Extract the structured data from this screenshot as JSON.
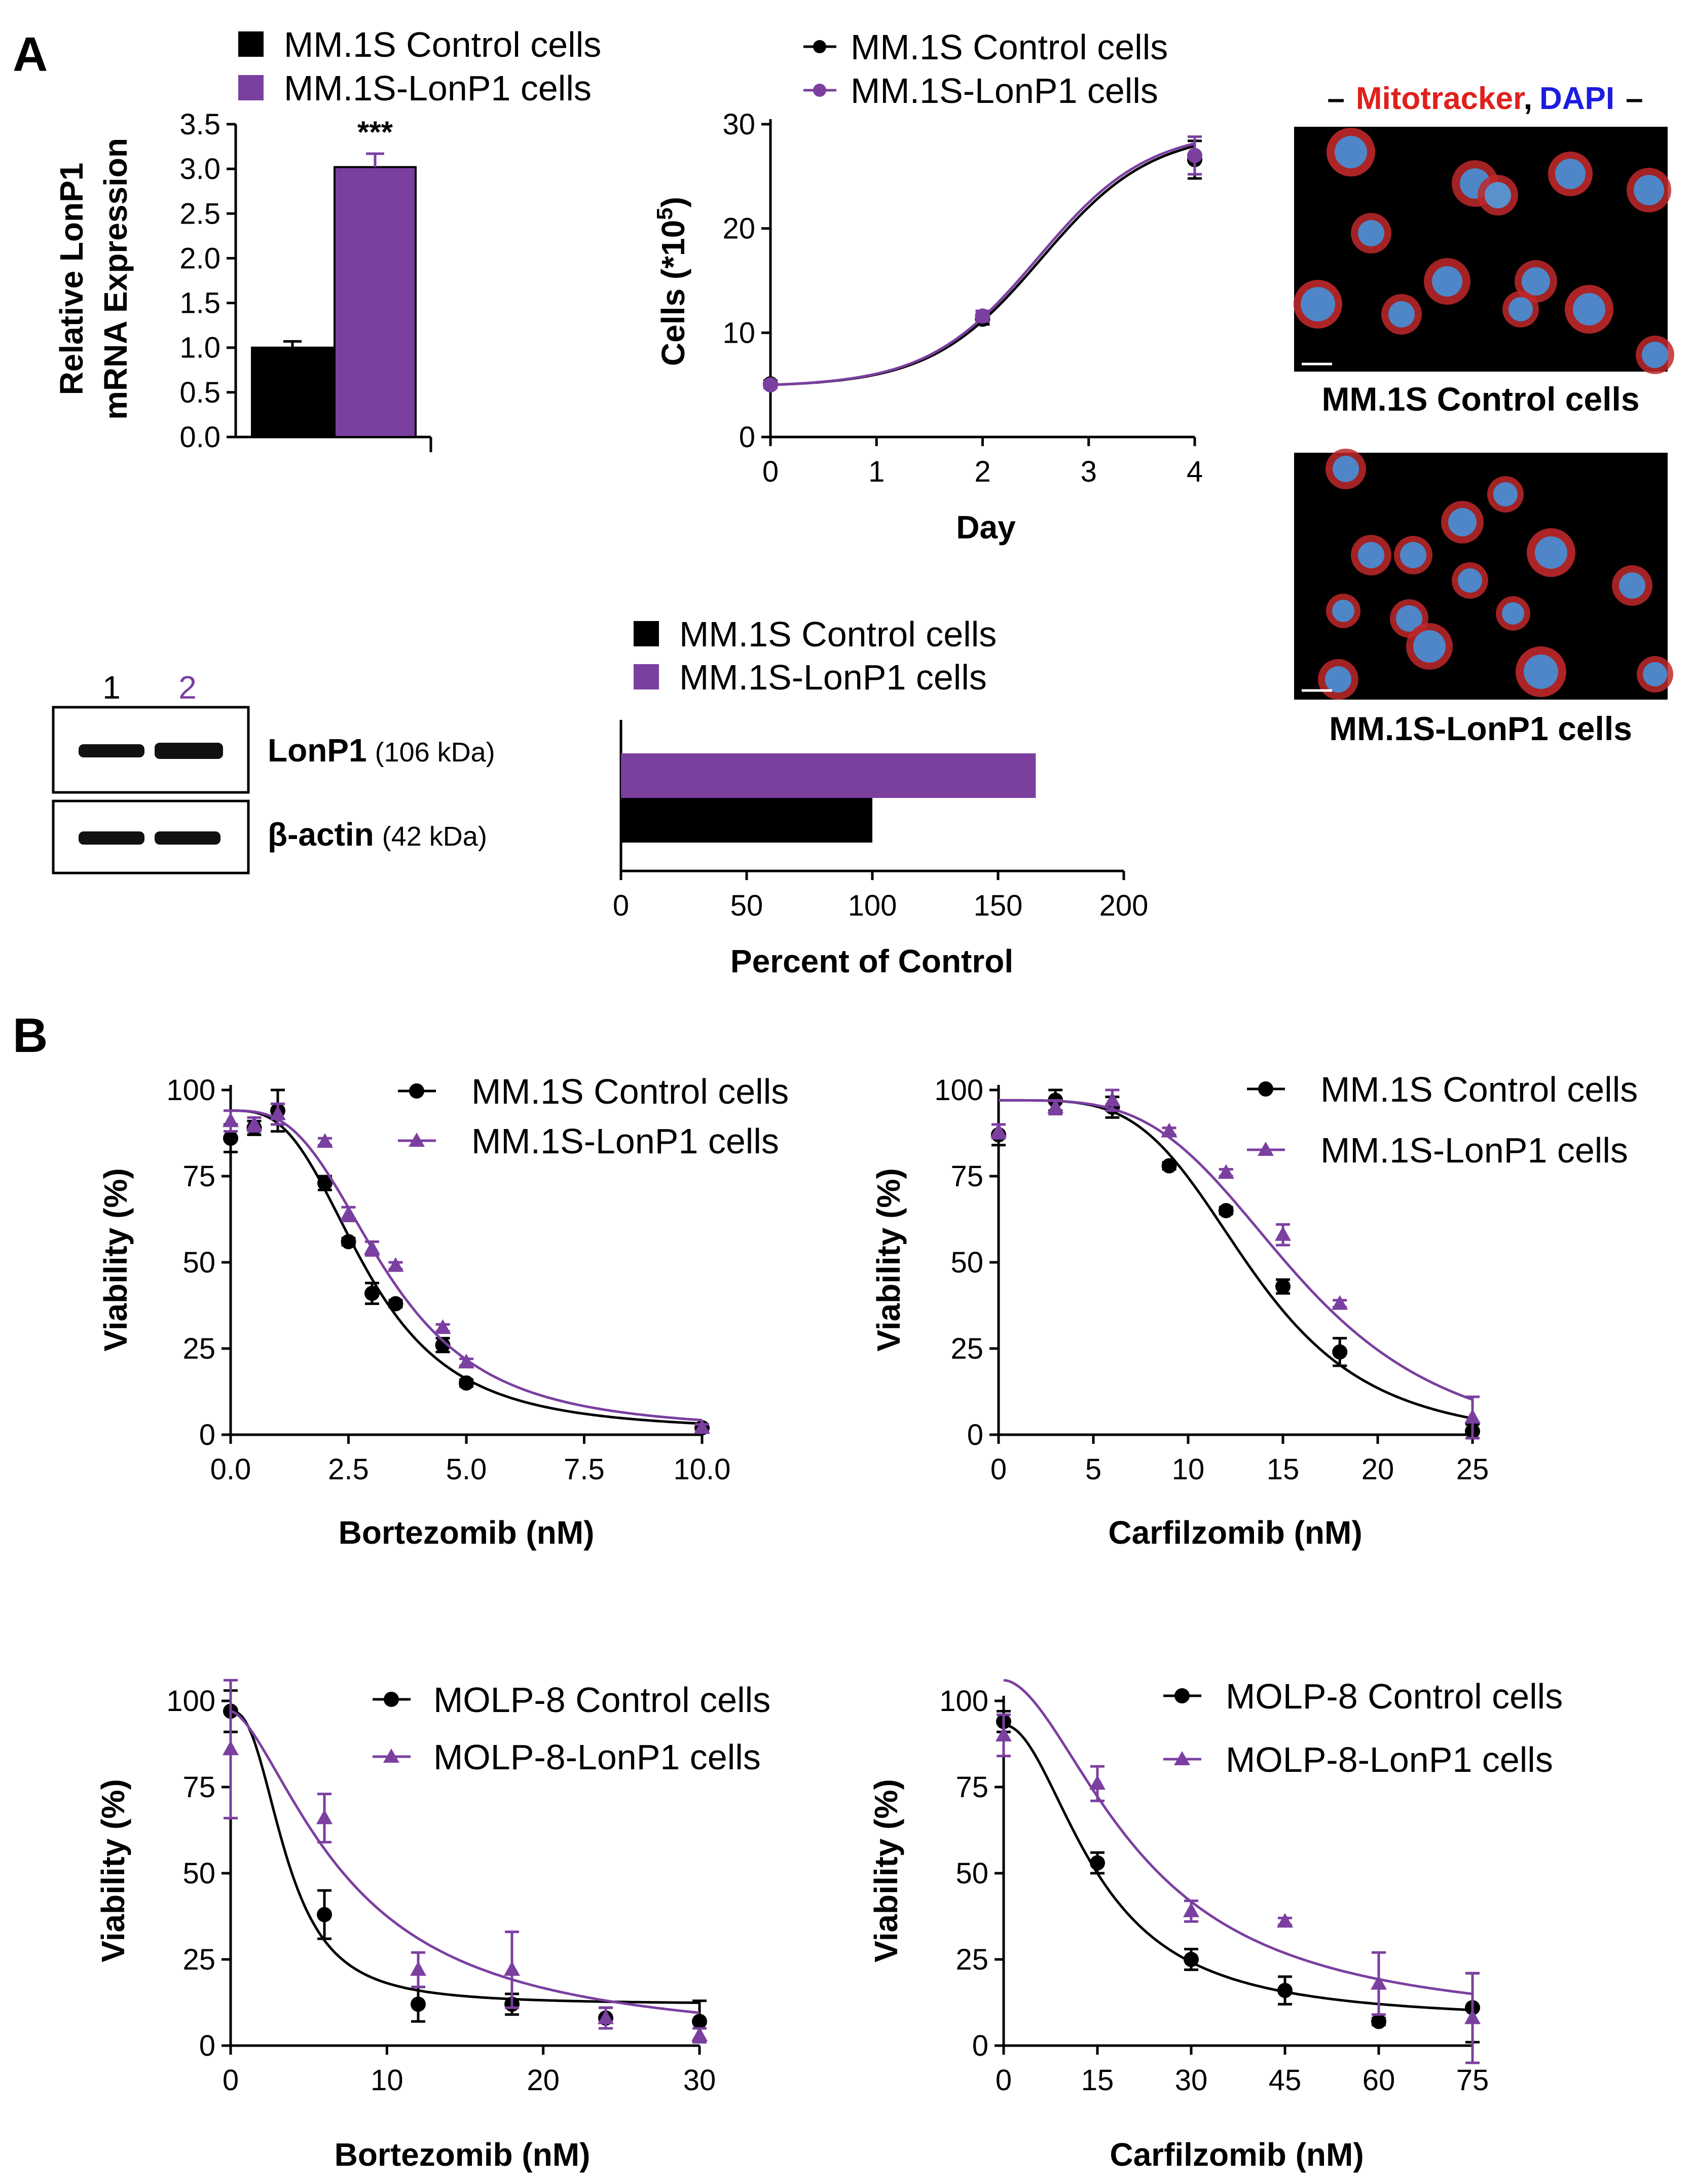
{
  "panels": {
    "A": "A",
    "B": "B"
  },
  "colors": {
    "control": "#000000",
    "lonp1": "#7B3FA0",
    "mito": "#E0201C",
    "dapi": "#1C1CE0"
  },
  "chart_data": [
    {
      "id": "mrna",
      "type": "bar",
      "ylabel_line1": "Relative LonP1",
      "ylabel_line2": "mRNA Expression",
      "ylim": [
        0,
        3.5
      ],
      "yticks": [
        "0.0",
        "0.5",
        "1.0",
        "1.5",
        "2.0",
        "2.5",
        "3.0",
        "3.5"
      ],
      "series": [
        {
          "name": "MM.1S Control cells",
          "value": 1.0,
          "err": 0.07
        },
        {
          "name": "MM.1S-LonP1 cells",
          "value": 3.02,
          "err": 0.15
        }
      ],
      "annotation": "***"
    },
    {
      "id": "growth",
      "type": "line",
      "xlabel": "Day",
      "ylabel": "Cells (*10",
      "ylabel_sup": "5",
      "ylabel_close": ")",
      "xlim": [
        0,
        4
      ],
      "ylim": [
        0,
        30
      ],
      "xticks": [
        "0",
        "1",
        "2",
        "3",
        "4"
      ],
      "yticks": [
        "0",
        "10",
        "20",
        "30"
      ],
      "series": [
        {
          "name": "MM.1S Control cells",
          "x": [
            0,
            2,
            4
          ],
          "y": [
            5.1,
            11.3,
            26.6
          ],
          "err": [
            0.3,
            0.5,
            1.8
          ]
        },
        {
          "name": "MM.1S-LonP1 cells",
          "x": [
            0,
            2,
            4
          ],
          "y": [
            5.0,
            11.6,
            27.0
          ],
          "err": [
            0.3,
            0.5,
            1.8
          ]
        }
      ]
    },
    {
      "id": "percent",
      "type": "bar",
      "orientation": "horizontal",
      "xlabel": "Percent of Control",
      "xlim": [
        0,
        200
      ],
      "xticks": [
        "0",
        "50",
        "100",
        "150",
        "200"
      ],
      "series": [
        {
          "name": "MM.1S Control cells",
          "value": 100
        },
        {
          "name": "MM.1S-LonP1 cells",
          "value": 165
        }
      ]
    },
    {
      "id": "mm1s-bort",
      "type": "line",
      "xlabel": "Bortezomib (nM)",
      "ylabel": "Viability (%)",
      "xlim": [
        0,
        10
      ],
      "ylim": [
        0,
        100
      ],
      "xticks": [
        "0.0",
        "2.5",
        "5.0",
        "7.5",
        "10.0"
      ],
      "yticks": [
        "0",
        "25",
        "50",
        "75",
        "100"
      ],
      "series": [
        {
          "name": "MM.1S Control cells",
          "marker": "circle",
          "x": [
            0,
            0.5,
            1,
            2,
            2.5,
            3,
            3.5,
            4.5,
            5,
            10
          ],
          "y": [
            86,
            89,
            94,
            73,
            56,
            41,
            38,
            26,
            15,
            2
          ],
          "err": [
            4,
            2,
            6,
            2,
            1,
            3,
            1,
            2,
            1,
            1
          ]
        },
        {
          "name": "MM.1S-LonP1 cells",
          "marker": "triangle",
          "x": [
            0,
            0.5,
            1,
            2,
            2.5,
            3,
            3.5,
            4.5,
            5,
            10
          ],
          "y": [
            91,
            90,
            93,
            85,
            64,
            54,
            49,
            31,
            21,
            2
          ],
          "err": [
            3,
            2,
            3,
            1,
            2,
            2,
            1,
            1,
            1,
            1
          ]
        }
      ]
    },
    {
      "id": "mm1s-carf",
      "type": "line",
      "xlabel": "Carfilzomib (nM)",
      "ylabel": "Viability (%)",
      "xlim": [
        0,
        25
      ],
      "ylim": [
        0,
        100
      ],
      "xticks": [
        "0",
        "5",
        "10",
        "15",
        "20",
        "25"
      ],
      "yticks": [
        "0",
        "25",
        "50",
        "75",
        "100"
      ],
      "series": [
        {
          "name": "MM.1S Control cells",
          "marker": "circle",
          "x": [
            0,
            3,
            6,
            9,
            12,
            15,
            18,
            25
          ],
          "y": [
            87,
            97,
            95,
            78,
            65,
            43,
            24,
            1
          ],
          "err": [
            3,
            3,
            3,
            1,
            1,
            2,
            4,
            2
          ]
        },
        {
          "name": "MM.1S-LonP1 cells",
          "marker": "triangle",
          "x": [
            0,
            3,
            6,
            9,
            12,
            15,
            18,
            25
          ],
          "y": [
            88,
            95,
            97,
            88,
            76,
            58,
            38,
            5
          ],
          "err": [
            2,
            2,
            3,
            1,
            1,
            3,
            1,
            6
          ]
        }
      ]
    },
    {
      "id": "molp8-bort",
      "type": "line",
      "xlabel": "Bortezomib (nM)",
      "ylabel": "Viability (%)",
      "xlim": [
        0,
        30
      ],
      "ylim": [
        0,
        100
      ],
      "xticks": [
        "0",
        "10",
        "20",
        "30"
      ],
      "yticks": [
        "0",
        "25",
        "50",
        "75",
        "100"
      ],
      "series": [
        {
          "name": "MOLP-8 Control cells",
          "marker": "circle",
          "x": [
            0,
            6,
            12,
            18,
            24,
            30
          ],
          "y": [
            97,
            38,
            12,
            12,
            8,
            7
          ],
          "err": [
            6,
            7,
            5,
            3,
            3,
            6
          ]
        },
        {
          "name": "MOLP-8-LonP1 cells",
          "marker": "triangle",
          "x": [
            0,
            6,
            12,
            18,
            24,
            30
          ],
          "y": [
            86,
            66,
            22,
            22,
            8,
            3
          ],
          "err": [
            20,
            7,
            5,
            11,
            3,
            2
          ]
        }
      ]
    },
    {
      "id": "molp8-carf",
      "type": "line",
      "xlabel": "Carfilzomib (nM)",
      "ylabel": "Viability (%)",
      "xlim": [
        0,
        75
      ],
      "ylim": [
        0,
        100
      ],
      "xticks": [
        "0",
        "15",
        "30",
        "45",
        "60",
        "75"
      ],
      "yticks": [
        "0",
        "25",
        "50",
        "75",
        "100"
      ],
      "series": [
        {
          "name": "MOLP-8 Control cells",
          "marker": "circle",
          "x": [
            0,
            15,
            30,
            45,
            60,
            75
          ],
          "y": [
            94,
            53,
            25,
            16,
            7,
            11
          ],
          "err": [
            3,
            3,
            3,
            4,
            1,
            10
          ]
        },
        {
          "name": "MOLP-8-LonP1 cells",
          "marker": "triangle",
          "x": [
            0,
            15,
            30,
            45,
            60,
            75
          ],
          "y": [
            90,
            76,
            39,
            36,
            18,
            8
          ],
          "err": [
            6,
            5,
            3,
            1,
            9,
            13
          ]
        }
      ]
    }
  ],
  "western_blot": {
    "lane1": "1",
    "lane2": "2",
    "band1_name": "LonP1",
    "band1_kda": "(106 kDa)",
    "band2_name": "β-actin",
    "band2_kda": "(42 kDa)"
  },
  "microscopy": {
    "header_dash_left": "–",
    "header_red": "Mitotracker",
    "header_comma": ",",
    "header_blue": "DAPI",
    "header_dash_right": "–",
    "top_caption": "MM.1S Control cells",
    "bottom_caption": "MM.1S-LonP1 cells"
  }
}
